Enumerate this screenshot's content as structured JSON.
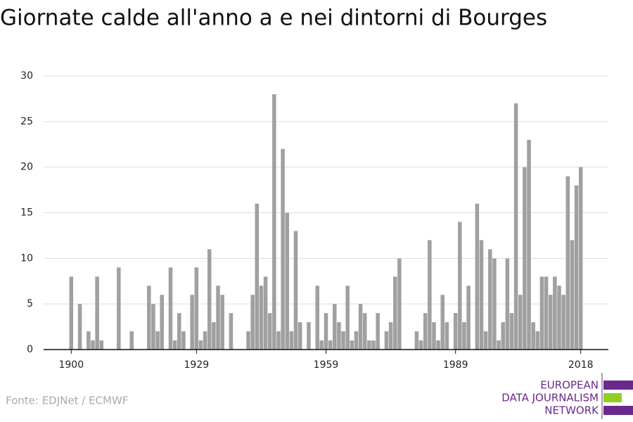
{
  "chart_data": {
    "type": "bar",
    "title": "Giornate calde all'anno a e nei dintorni di Bourges",
    "source": "Fonte: EDJNet / ECMWF",
    "logo": [
      "EUROPEAN",
      "DATA JOURNALISM",
      "NETWORK"
    ],
    "color": "#a0a0a0",
    "x": [
      1900,
      1901,
      1902,
      1903,
      1904,
      1905,
      1906,
      1907,
      1908,
      1909,
      1910,
      1911,
      1912,
      1913,
      1914,
      1915,
      1916,
      1917,
      1918,
      1919,
      1920,
      1921,
      1922,
      1923,
      1924,
      1925,
      1926,
      1927,
      1928,
      1929,
      1930,
      1931,
      1932,
      1933,
      1934,
      1935,
      1936,
      1937,
      1938,
      1939,
      1940,
      1941,
      1942,
      1943,
      1944,
      1945,
      1946,
      1947,
      1948,
      1949,
      1950,
      1951,
      1952,
      1953,
      1954,
      1955,
      1956,
      1957,
      1958,
      1959,
      1960,
      1961,
      1962,
      1963,
      1964,
      1965,
      1966,
      1967,
      1968,
      1969,
      1970,
      1971,
      1972,
      1973,
      1974,
      1975,
      1976,
      1977,
      1978,
      1979,
      1980,
      1981,
      1982,
      1983,
      1984,
      1985,
      1986,
      1987,
      1988,
      1989,
      1990,
      1991,
      1992,
      1993,
      1994,
      1995,
      1996,
      1997,
      1998,
      1999,
      2000,
      2001,
      2002,
      2003,
      2004,
      2005,
      2006,
      2007,
      2008,
      2009,
      2010,
      2011,
      2012,
      2013,
      2014,
      2015,
      2016,
      2017,
      2018
    ],
    "values": [
      8,
      0,
      5,
      0,
      2,
      1,
      8,
      1,
      0,
      0,
      0,
      9,
      0,
      0,
      2,
      0,
      0,
      0,
      7,
      5,
      2,
      6,
      0,
      9,
      1,
      4,
      2,
      0,
      6,
      9,
      1,
      2,
      11,
      3,
      7,
      6,
      0,
      4,
      0,
      0,
      0,
      2,
      6,
      16,
      7,
      8,
      4,
      28,
      2,
      22,
      15,
      2,
      13,
      3,
      0,
      3,
      0,
      7,
      1,
      4,
      1,
      5,
      3,
      2,
      7,
      1,
      2,
      5,
      4,
      1,
      1,
      4,
      0,
      2,
      3,
      8,
      10,
      0,
      0,
      0,
      2,
      1,
      4,
      12,
      3,
      1,
      6,
      3,
      0,
      4,
      14,
      3,
      7,
      0,
      16,
      12,
      2,
      11,
      10,
      1,
      3,
      10,
      4,
      27,
      6,
      20,
      23,
      3,
      2,
      8,
      8,
      6,
      8,
      7,
      6,
      19,
      12,
      18,
      20
    ],
    "xlim": [
      1893.6,
      2024.4
    ],
    "xticks": [
      1900,
      1929,
      1959,
      1989,
      2018
    ],
    "ylim": [
      0,
      30
    ],
    "yticks": [
      0,
      5,
      10,
      15,
      20,
      25,
      30
    ],
    "grid": true
  }
}
